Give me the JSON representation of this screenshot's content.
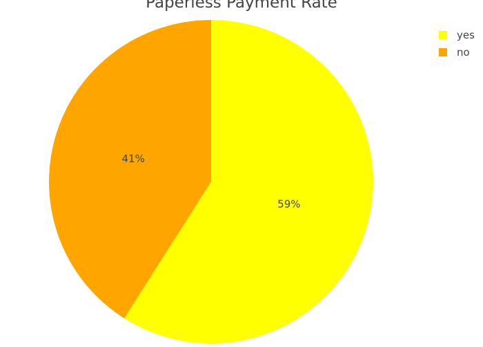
{
  "chart_data": {
    "type": "pie",
    "title": "Paperless Payment Rate",
    "categories": [
      "yes",
      "no"
    ],
    "values": [
      59,
      41
    ],
    "value_labels": [
      "59%",
      "41%"
    ],
    "colors": [
      "#ffff00",
      "#ffa500"
    ],
    "legend_position": "top-right"
  }
}
